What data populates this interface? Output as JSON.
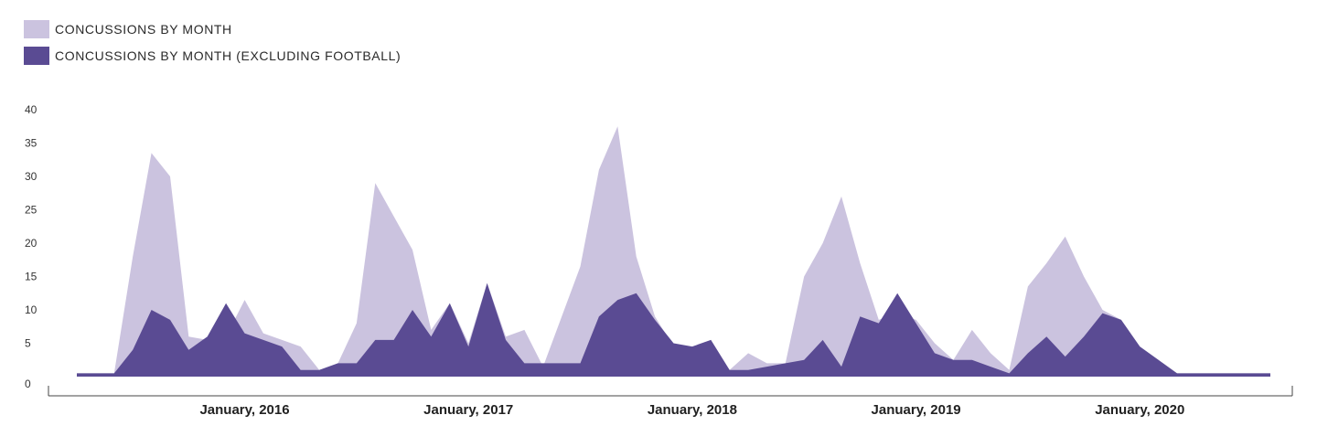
{
  "legend": {
    "items": [
      {
        "label": "CONCUSSIONS BY MONTH",
        "color": "#cbc3df"
      },
      {
        "label": "CONCUSSIONS BY MONTH (EXCLUDING FOOTBALL)",
        "color": "#5a4b93"
      }
    ]
  },
  "chart_data": {
    "type": "area",
    "title": "",
    "xlabel": "",
    "ylabel": "",
    "ylim": [
      0,
      40
    ],
    "yticks": [
      0,
      5,
      10,
      15,
      20,
      25,
      30,
      35,
      40
    ],
    "x_count": 65,
    "xtick_labels": [
      {
        "index": 9,
        "label": "January, 2016"
      },
      {
        "index": 21,
        "label": "January, 2017"
      },
      {
        "index": 33,
        "label": "January, 2018"
      },
      {
        "index": 45,
        "label": "January, 2019"
      },
      {
        "index": 57,
        "label": "January, 2020"
      }
    ],
    "grid": false,
    "legend_position": "top-left",
    "series": [
      {
        "name": "CONCUSSIONS BY MONTH",
        "color": "#cbc3df",
        "values": [
          0.5,
          0.5,
          0.5,
          18,
          33.5,
          30,
          6,
          5.5,
          6,
          11.5,
          6.5,
          5.5,
          4.5,
          1,
          2,
          8,
          29,
          24,
          19,
          7,
          11,
          5,
          14,
          6,
          7,
          1.5,
          9,
          16.5,
          31,
          37.5,
          18,
          9,
          4.5,
          4.5,
          5.5,
          1,
          3.5,
          2,
          2,
          15,
          20,
          27,
          17,
          8.5,
          9.5,
          8.5,
          5,
          2.5,
          7,
          3.5,
          1,
          13.5,
          17,
          21,
          15,
          10,
          8.5,
          4.5,
          2,
          0.5,
          0.5,
          0.5,
          0.5,
          0.5,
          0.5
        ]
      },
      {
        "name": "CONCUSSIONS BY MONTH (EXCLUDING FOOTBALL)",
        "color": "#5a4b93",
        "values": [
          0.5,
          0.5,
          0.5,
          4,
          10,
          8.5,
          4,
          6,
          11,
          6.5,
          5.5,
          4.5,
          1,
          1,
          2,
          2,
          5.5,
          5.5,
          10,
          6,
          11,
          4.5,
          14,
          5.5,
          2,
          2,
          2,
          2,
          9,
          11.5,
          12.5,
          8.5,
          5,
          4.5,
          5.5,
          1,
          1,
          1.5,
          2,
          2.5,
          5.5,
          1.5,
          9,
          8,
          12.5,
          8,
          3.5,
          2.5,
          2.5,
          1.5,
          0.5,
          3.5,
          6,
          3,
          6,
          9.5,
          8.5,
          4.5,
          2.5,
          0.5,
          0.5,
          0.5,
          0.5,
          0.5,
          0.5
        ]
      }
    ]
  }
}
